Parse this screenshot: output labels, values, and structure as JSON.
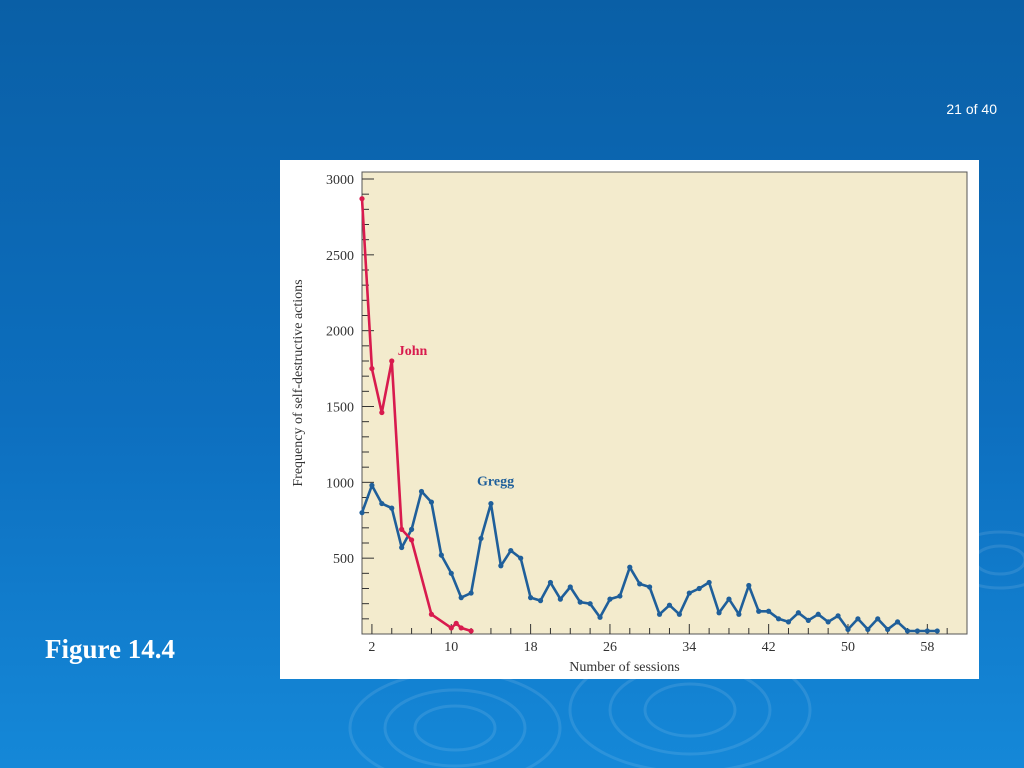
{
  "slide": {
    "counter": "21 of 40",
    "caption": "Figure 14.4"
  },
  "colors": {
    "background": "#0d6fbf",
    "plot_background": "#f3ebcd",
    "john": "#d81b4e",
    "gregg": "#1f5f9a"
  },
  "chart_data": {
    "type": "line",
    "xlabel": "Number of sessions",
    "ylabel": "Frequency of self-destructive actions",
    "xlim": [
      1,
      62
    ],
    "ylim": [
      0,
      3000
    ],
    "x_ticks": [
      2,
      10,
      18,
      26,
      34,
      42,
      50,
      58
    ],
    "y_ticks": [
      500,
      1000,
      1500,
      2000,
      2500,
      3000
    ],
    "grid": false,
    "series": [
      {
        "name": "John",
        "color": "#d81b4e",
        "x": [
          1,
          2,
          3,
          4,
          5,
          6,
          8,
          10,
          10.5,
          11,
          12
        ],
        "y": [
          2870,
          1750,
          1460,
          1800,
          690,
          620,
          130,
          40,
          70,
          40,
          20
        ]
      },
      {
        "name": "Gregg",
        "color": "#1f5f9a",
        "x": [
          1,
          2,
          3,
          4,
          5,
          6,
          7,
          8,
          9,
          10,
          11,
          12,
          13,
          14,
          15,
          16,
          17,
          18,
          19,
          20,
          21,
          22,
          23,
          24,
          25,
          26,
          27,
          28,
          29,
          30,
          31,
          32,
          33,
          34,
          35,
          36,
          37,
          38,
          39,
          40,
          41,
          42,
          43,
          44,
          45,
          46,
          47,
          48,
          49,
          50,
          51,
          52,
          53,
          54,
          55,
          56,
          57,
          58,
          59
        ],
        "y": [
          800,
          980,
          860,
          830,
          570,
          690,
          940,
          870,
          520,
          400,
          240,
          270,
          630,
          860,
          450,
          550,
          500,
          240,
          220,
          340,
          230,
          310,
          210,
          200,
          110,
          230,
          250,
          440,
          330,
          310,
          130,
          190,
          130,
          270,
          300,
          340,
          140,
          230,
          130,
          320,
          150,
          150,
          100,
          80,
          140,
          90,
          130,
          80,
          120,
          30,
          100,
          30,
          100,
          30,
          80,
          20,
          20,
          20,
          20
        ]
      }
    ]
  }
}
